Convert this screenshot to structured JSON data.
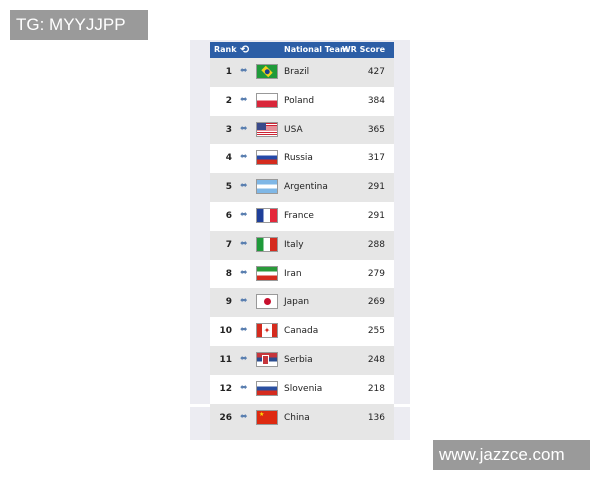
{
  "watermarks": {
    "top_left": "TG: MYYJJPP",
    "bottom_right": "www.jazzce.com"
  },
  "header": {
    "rank": "Rank",
    "team": "National Team",
    "score": "WR Score",
    "sort_icon": "rotate-arrows-icon"
  },
  "colors": {
    "header_bg": "#2c5ea6",
    "alt_row": "#e6e6e6"
  },
  "rows": [
    {
      "rank": "1",
      "team": "Brazil",
      "score": "427",
      "flag": "brazil"
    },
    {
      "rank": "2",
      "team": "Poland",
      "score": "384",
      "flag": "poland"
    },
    {
      "rank": "3",
      "team": "USA",
      "score": "365",
      "flag": "usa"
    },
    {
      "rank": "4",
      "team": "Russia",
      "score": "317",
      "flag": "russia"
    },
    {
      "rank": "5",
      "team": "Argentina",
      "score": "291",
      "flag": "argentina"
    },
    {
      "rank": "6",
      "team": "France",
      "score": "291",
      "flag": "france"
    },
    {
      "rank": "7",
      "team": "Italy",
      "score": "288",
      "flag": "italy"
    },
    {
      "rank": "8",
      "team": "Iran",
      "score": "279",
      "flag": "iran"
    },
    {
      "rank": "9",
      "team": "Japan",
      "score": "269",
      "flag": "japan"
    },
    {
      "rank": "10",
      "team": "Canada",
      "score": "255",
      "flag": "canada"
    },
    {
      "rank": "11",
      "team": "Serbia",
      "score": "248",
      "flag": "serbia"
    },
    {
      "rank": "12",
      "team": "Slovenia",
      "score": "218",
      "flag": "slovenia"
    },
    {
      "rank": "26",
      "team": "China",
      "score": "136",
      "flag": "china"
    }
  ]
}
